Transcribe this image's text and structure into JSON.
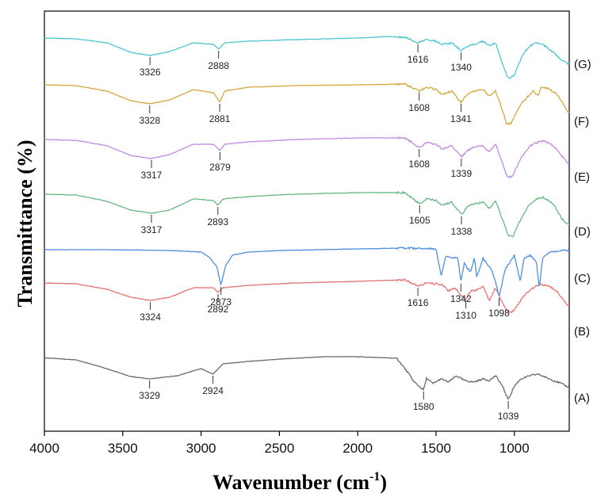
{
  "chart_data": {
    "type": "line",
    "xlabel_main": "Wavenumber (cm",
    "xlabel_sup": "-1",
    "xlabel_tail": ")",
    "ylabel": "Transmittance (%)",
    "xlim": [
      4000,
      650
    ],
    "x_reversed": true,
    "xticks": [
      4000,
      3500,
      3000,
      2500,
      2000,
      1500,
      1000
    ],
    "xtick_labels": [
      "4000",
      "3500",
      "3000",
      "2500",
      "2000",
      "1500",
      "1000"
    ],
    "yticks": false,
    "grid": false,
    "legend": "series labels at right end of each trace",
    "colors": {
      "A": "#6b6b6b",
      "B": "#e57373",
      "C": "#4f8fe0",
      "D": "#66b884",
      "E": "#c08be0",
      "F": "#d4a83e",
      "G": "#4fc6cf"
    },
    "series": [
      {
        "name": "(A)",
        "offset": 0,
        "values": [
          [
            4000,
            0.6
          ],
          [
            3800,
            -2
          ],
          [
            3650,
            -10
          ],
          [
            3450,
            -23
          ],
          [
            3329,
            -26
          ],
          [
            3150,
            -22
          ],
          [
            3000,
            -13
          ],
          [
            2924,
            -20
          ],
          [
            2860,
            -7
          ],
          [
            2700,
            -4
          ],
          [
            2500,
            -1
          ],
          [
            2200,
            2
          ],
          [
            2000,
            2
          ],
          [
            1750,
            0
          ],
          [
            1680,
            -18
          ],
          [
            1640,
            -30
          ],
          [
            1580,
            -40
          ],
          [
            1560,
            -25
          ],
          [
            1520,
            -32
          ],
          [
            1470,
            -26
          ],
          [
            1420,
            -30
          ],
          [
            1370,
            -22
          ],
          [
            1320,
            -28
          ],
          [
            1260,
            -30
          ],
          [
            1200,
            -26
          ],
          [
            1160,
            -28
          ],
          [
            1120,
            -22
          ],
          [
            1080,
            -34
          ],
          [
            1039,
            -52
          ],
          [
            1000,
            -35
          ],
          [
            960,
            -26
          ],
          [
            900,
            -22
          ],
          [
            850,
            -20
          ],
          [
            800,
            -24
          ],
          [
            750,
            -28
          ],
          [
            700,
            -32
          ],
          [
            660,
            -36
          ]
        ],
        "peaks": [
          {
            "x": 3329,
            "label": "3329"
          },
          {
            "x": 2924,
            "label": "2924"
          },
          {
            "x": 1580,
            "label": "1580"
          },
          {
            "x": 1039,
            "label": "1039"
          }
        ]
      },
      {
        "name": "(B)",
        "offset": 0,
        "values": [
          [
            4000,
            0
          ],
          [
            3800,
            -1
          ],
          [
            3600,
            -8
          ],
          [
            3450,
            -18
          ],
          [
            3324,
            -22
          ],
          [
            3200,
            -18
          ],
          [
            3050,
            -6
          ],
          [
            2920,
            -6
          ],
          [
            2892,
            -12
          ],
          [
            2860,
            -6
          ],
          [
            2700,
            -3
          ],
          [
            2400,
            0
          ],
          [
            2000,
            2
          ],
          [
            1700,
            4
          ],
          [
            1616,
            -4
          ],
          [
            1560,
            0
          ],
          [
            1460,
            -2
          ],
          [
            1420,
            -10
          ],
          [
            1380,
            -6
          ],
          [
            1340,
            -16
          ],
          [
            1310,
            -20
          ],
          [
            1280,
            -10
          ],
          [
            1230,
            -8
          ],
          [
            1200,
            -4
          ],
          [
            1160,
            -22
          ],
          [
            1120,
            -6
          ],
          [
            1080,
            -24
          ],
          [
            1050,
            -34
          ],
          [
            1030,
            -38
          ],
          [
            1000,
            -34
          ],
          [
            960,
            -22
          ],
          [
            920,
            -12
          ],
          [
            880,
            -6
          ],
          [
            840,
            -2
          ],
          [
            780,
            -4
          ],
          [
            730,
            -10
          ],
          [
            700,
            -18
          ],
          [
            670,
            -26
          ],
          [
            655,
            -28
          ]
        ],
        "peaks": [
          {
            "x": 3324,
            "label": "3324"
          },
          {
            "x": 2892,
            "label": "2892"
          },
          {
            "x": 1616,
            "label": "1616"
          },
          {
            "x": 1310,
            "label": "1310"
          }
        ]
      },
      {
        "name": "(C)",
        "offset": 0,
        "values": [
          [
            4000,
            1
          ],
          [
            3600,
            1
          ],
          [
            3200,
            0
          ],
          [
            3000,
            -2
          ],
          [
            2950,
            -8
          ],
          [
            2900,
            -20
          ],
          [
            2873,
            -44
          ],
          [
            2845,
            -20
          ],
          [
            2800,
            -6
          ],
          [
            2700,
            -2
          ],
          [
            2500,
            0
          ],
          [
            2000,
            2
          ],
          [
            1700,
            3
          ],
          [
            1500,
            2
          ],
          [
            1467,
            -32
          ],
          [
            1440,
            -8
          ],
          [
            1360,
            -10
          ],
          [
            1342,
            -40
          ],
          [
            1320,
            -16
          ],
          [
            1280,
            -28
          ],
          [
            1255,
            -8
          ],
          [
            1240,
            -34
          ],
          [
            1200,
            -10
          ],
          [
            1147,
            -24
          ],
          [
            1120,
            -40
          ],
          [
            1098,
            -58
          ],
          [
            1080,
            -42
          ],
          [
            1060,
            -24
          ],
          [
            1000,
            -6
          ],
          [
            962,
            -40
          ],
          [
            940,
            -10
          ],
          [
            900,
            -6
          ],
          [
            860,
            -14
          ],
          [
            842,
            -48
          ],
          [
            820,
            -10
          ],
          [
            780,
            -2
          ],
          [
            700,
            0
          ],
          [
            660,
            0
          ]
        ],
        "peaks": [
          {
            "x": 2873,
            "label": "2873"
          },
          {
            "x": 1342,
            "label": "1342"
          },
          {
            "x": 1098,
            "label": "1098"
          }
        ]
      },
      {
        "name": "(D)",
        "offset": 0,
        "values": [
          [
            4000,
            0
          ],
          [
            3800,
            -1
          ],
          [
            3600,
            -9
          ],
          [
            3450,
            -20
          ],
          [
            3317,
            -24
          ],
          [
            3200,
            -20
          ],
          [
            3050,
            -6
          ],
          [
            2920,
            -8
          ],
          [
            2893,
            -14
          ],
          [
            2860,
            -6
          ],
          [
            2700,
            -3
          ],
          [
            2400,
            0
          ],
          [
            2000,
            2
          ],
          [
            1700,
            2
          ],
          [
            1605,
            -12
          ],
          [
            1560,
            -6
          ],
          [
            1500,
            -8
          ],
          [
            1460,
            -14
          ],
          [
            1400,
            -10
          ],
          [
            1338,
            -26
          ],
          [
            1300,
            -16
          ],
          [
            1260,
            -12
          ],
          [
            1200,
            -10
          ],
          [
            1160,
            -18
          ],
          [
            1120,
            -8
          ],
          [
            1080,
            -30
          ],
          [
            1040,
            -52
          ],
          [
            1010,
            -54
          ],
          [
            980,
            -40
          ],
          [
            940,
            -24
          ],
          [
            900,
            -12
          ],
          [
            860,
            -6
          ],
          [
            820,
            -4
          ],
          [
            780,
            -8
          ],
          [
            740,
            -16
          ],
          [
            700,
            -30
          ],
          [
            660,
            -38
          ]
        ],
        "peaks": [
          {
            "x": 3317,
            "label": "3317"
          },
          {
            "x": 2893,
            "label": "2893"
          },
          {
            "x": 1605,
            "label": "1605"
          },
          {
            "x": 1338,
            "label": "1338"
          }
        ]
      },
      {
        "name": "(E)",
        "offset": 0,
        "values": [
          [
            4000,
            0
          ],
          [
            3800,
            -1
          ],
          [
            3600,
            -8
          ],
          [
            3450,
            -20
          ],
          [
            3317,
            -24
          ],
          [
            3200,
            -19
          ],
          [
            3050,
            -6
          ],
          [
            2920,
            -6
          ],
          [
            2879,
            -14
          ],
          [
            2850,
            -6
          ],
          [
            2700,
            -3
          ],
          [
            2400,
            0
          ],
          [
            2000,
            2
          ],
          [
            1700,
            2
          ],
          [
            1608,
            -10
          ],
          [
            1560,
            -4
          ],
          [
            1500,
            -6
          ],
          [
            1460,
            -12
          ],
          [
            1400,
            -8
          ],
          [
            1339,
            -22
          ],
          [
            1300,
            -14
          ],
          [
            1260,
            -10
          ],
          [
            1200,
            -8
          ],
          [
            1160,
            -16
          ],
          [
            1120,
            -6
          ],
          [
            1080,
            -28
          ],
          [
            1045,
            -48
          ],
          [
            1010,
            -46
          ],
          [
            980,
            -32
          ],
          [
            940,
            -18
          ],
          [
            900,
            -8
          ],
          [
            860,
            -4
          ],
          [
            820,
            -2
          ],
          [
            780,
            -4
          ],
          [
            740,
            -10
          ],
          [
            700,
            -20
          ],
          [
            660,
            -30
          ]
        ],
        "peaks": [
          {
            "x": 3317,
            "label": "3317"
          },
          {
            "x": 2879,
            "label": "2879"
          },
          {
            "x": 1608,
            "label": "1608"
          },
          {
            "x": 1339,
            "label": "1339"
          }
        ]
      },
      {
        "name": "(F)",
        "offset": 0,
        "values": [
          [
            4000,
            0
          ],
          [
            3800,
            -1
          ],
          [
            3600,
            -8
          ],
          [
            3450,
            -20
          ],
          [
            3328,
            -24
          ],
          [
            3200,
            -19
          ],
          [
            3050,
            -6
          ],
          [
            2920,
            -10
          ],
          [
            2881,
            -22
          ],
          [
            2850,
            -8
          ],
          [
            2700,
            -3
          ],
          [
            2400,
            -1
          ],
          [
            2000,
            0
          ],
          [
            1700,
            1
          ],
          [
            1608,
            -8
          ],
          [
            1560,
            -3
          ],
          [
            1500,
            -6
          ],
          [
            1460,
            -12
          ],
          [
            1400,
            -8
          ],
          [
            1341,
            -22
          ],
          [
            1300,
            -12
          ],
          [
            1260,
            -8
          ],
          [
            1200,
            -6
          ],
          [
            1160,
            -14
          ],
          [
            1120,
            -8
          ],
          [
            1080,
            -30
          ],
          [
            1050,
            -50
          ],
          [
            1020,
            -48
          ],
          [
            990,
            -36
          ],
          [
            950,
            -22
          ],
          [
            910,
            -14
          ],
          [
            880,
            -8
          ],
          [
            850,
            -14
          ],
          [
            830,
            -4
          ],
          [
            790,
            -4
          ],
          [
            740,
            -10
          ],
          [
            700,
            -20
          ],
          [
            660,
            -34
          ]
        ],
        "peaks": [
          {
            "x": 3328,
            "label": "3328"
          },
          {
            "x": 2881,
            "label": "2881"
          },
          {
            "x": 1608,
            "label": "1608"
          },
          {
            "x": 1341,
            "label": "1341"
          }
        ]
      },
      {
        "name": "(G)",
        "offset": 0,
        "values": [
          [
            4000,
            0
          ],
          [
            3800,
            -1
          ],
          [
            3600,
            -6
          ],
          [
            3450,
            -18
          ],
          [
            3326,
            -22
          ],
          [
            3200,
            -17
          ],
          [
            3050,
            -6
          ],
          [
            2920,
            -8
          ],
          [
            2888,
            -14
          ],
          [
            2850,
            -6
          ],
          [
            2700,
            -4
          ],
          [
            2400,
            -2
          ],
          [
            2000,
            0
          ],
          [
            1800,
            2
          ],
          [
            1700,
            1
          ],
          [
            1616,
            -6
          ],
          [
            1560,
            -2
          ],
          [
            1500,
            -4
          ],
          [
            1460,
            -8
          ],
          [
            1400,
            -6
          ],
          [
            1340,
            -16
          ],
          [
            1300,
            -10
          ],
          [
            1260,
            -8
          ],
          [
            1200,
            -4
          ],
          [
            1160,
            -10
          ],
          [
            1120,
            -6
          ],
          [
            1080,
            -30
          ],
          [
            1050,
            -46
          ],
          [
            1030,
            -52
          ],
          [
            1000,
            -46
          ],
          [
            970,
            -32
          ],
          [
            940,
            -18
          ],
          [
            900,
            -10
          ],
          [
            860,
            -6
          ],
          [
            820,
            -8
          ],
          [
            780,
            -14
          ],
          [
            740,
            -20
          ],
          [
            700,
            -28
          ],
          [
            660,
            -32
          ]
        ],
        "peaks": [
          {
            "x": 3326,
            "label": "3326"
          },
          {
            "x": 2888,
            "label": "2888"
          },
          {
            "x": 1616,
            "label": "1616"
          },
          {
            "x": 1340,
            "label": "1340"
          }
        ]
      }
    ]
  }
}
